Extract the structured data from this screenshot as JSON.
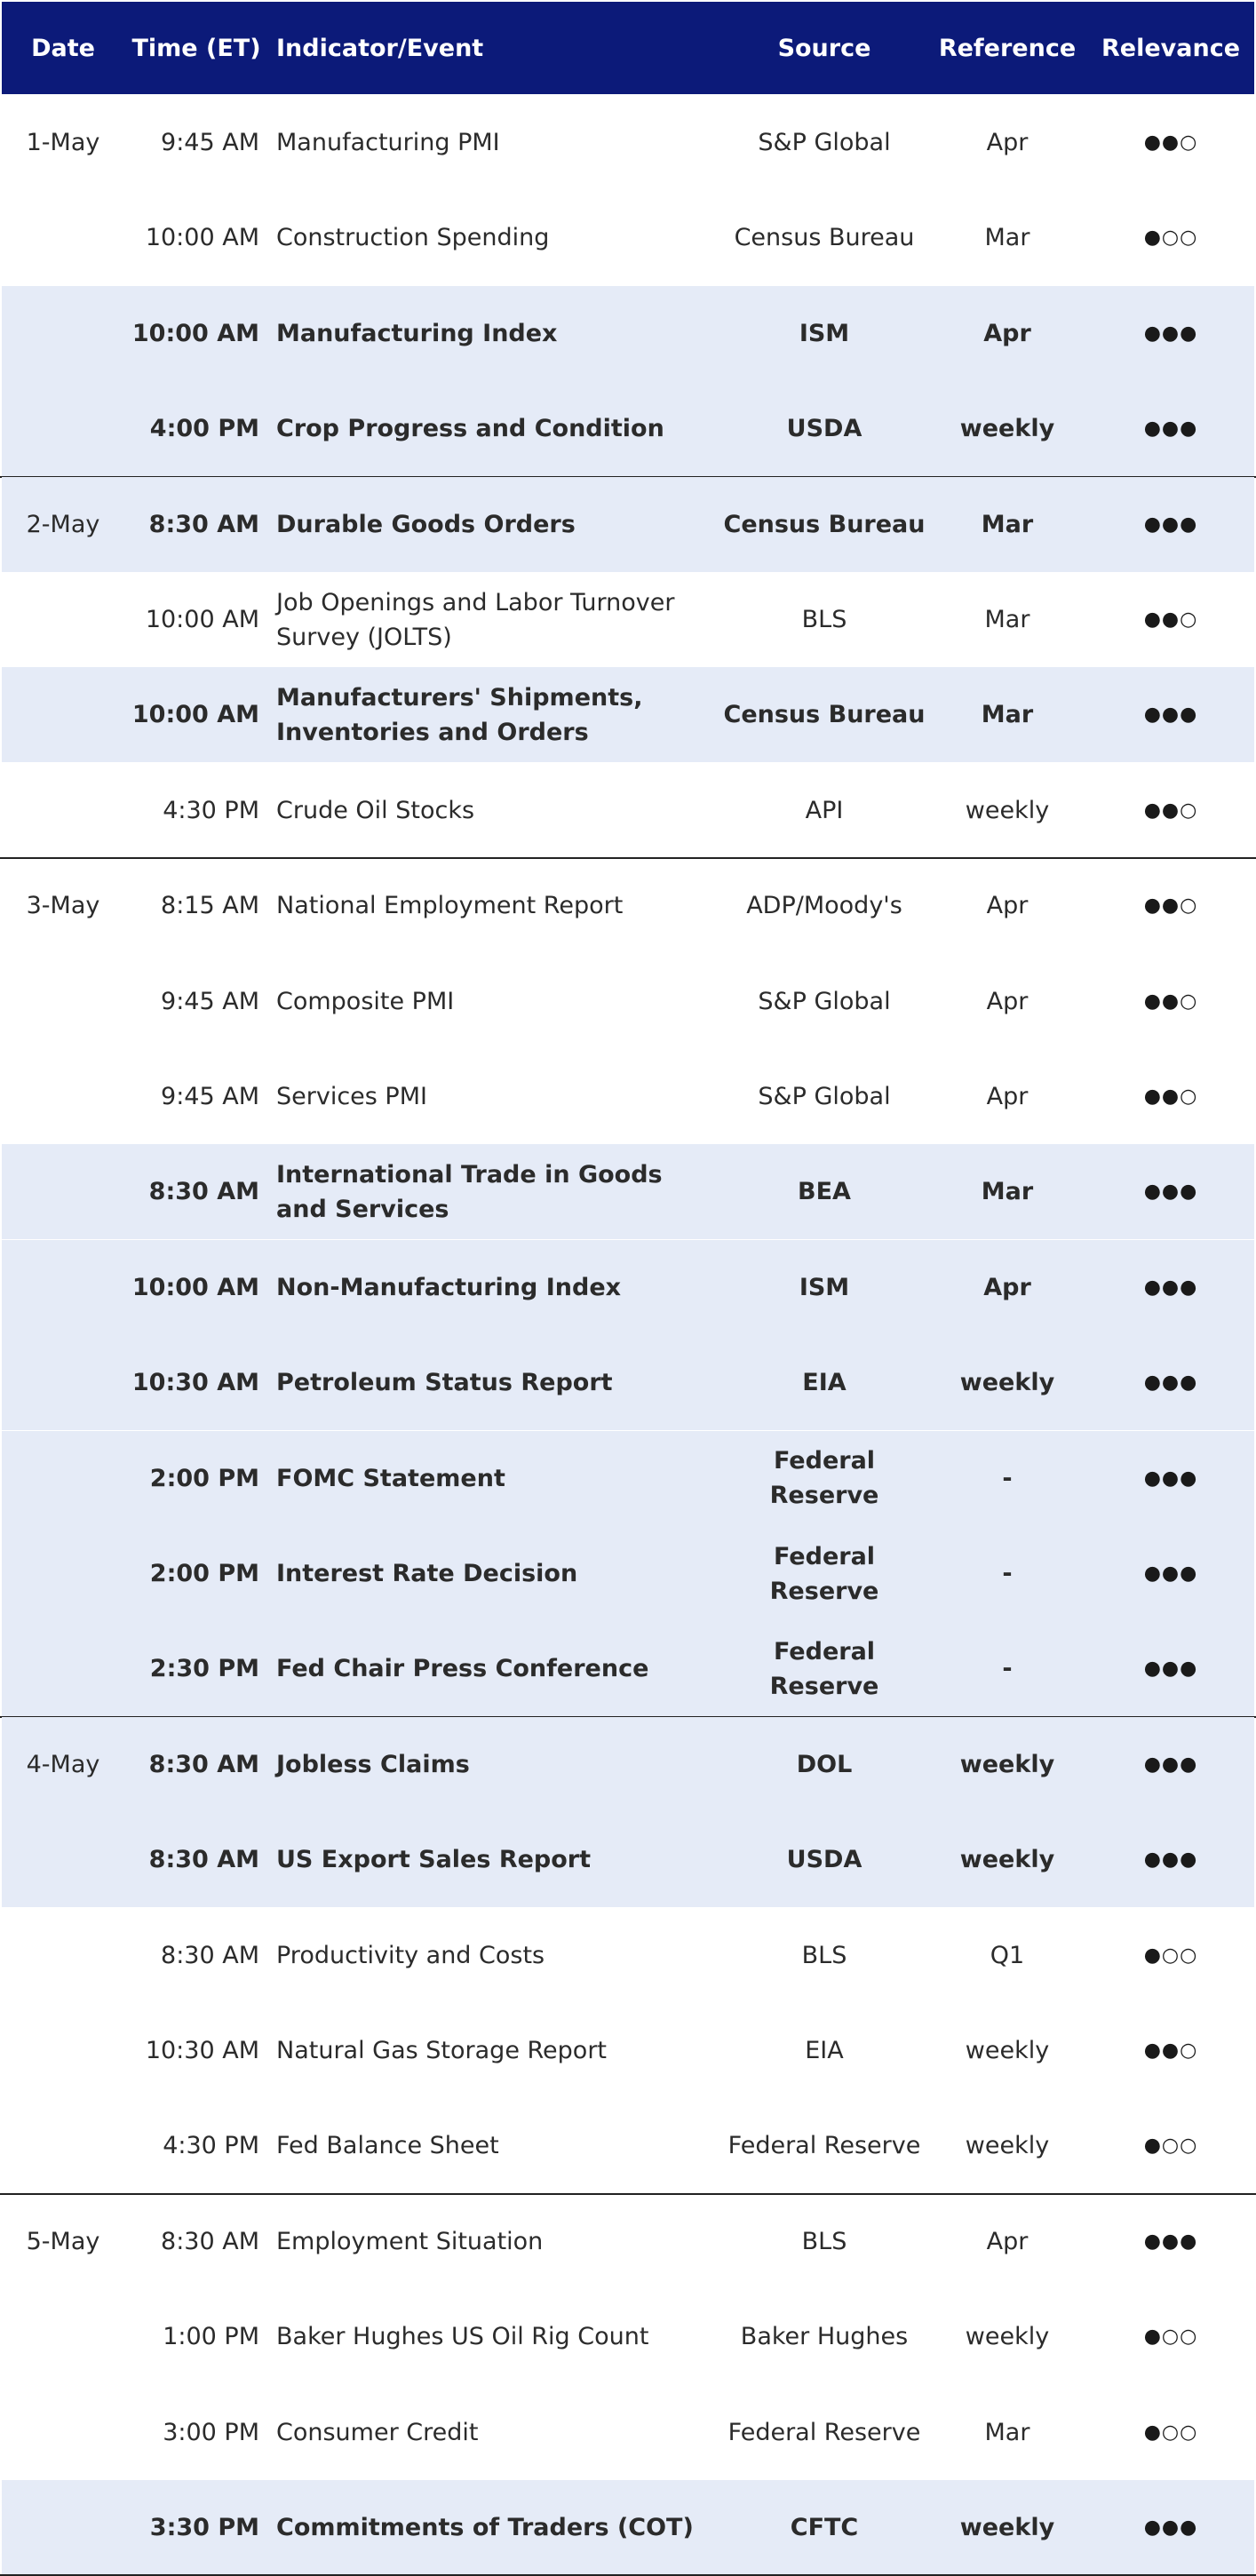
{
  "headers": {
    "date": "Date",
    "time": "Time (ET)",
    "event": "Indicator/Event",
    "source": "Source",
    "reference": "Reference",
    "relevance": "Relevance"
  },
  "rows": [
    {
      "date": "1-May",
      "time": "9:45 AM",
      "event": "Manufacturing PMI",
      "source": "S&P Global",
      "reference": "Apr",
      "relevance": "●●○",
      "highlight": false,
      "bold": false
    },
    {
      "date": "",
      "time": "10:00 AM",
      "event": "Construction Spending",
      "source": "Census Bureau",
      "reference": "Mar",
      "relevance": "●○○",
      "highlight": false,
      "bold": false
    },
    {
      "date": "",
      "time": "10:00 AM",
      "event": "Manufacturing Index",
      "source": "ISM",
      "reference": "Apr",
      "relevance": "●●●",
      "highlight": true,
      "bold": true
    },
    {
      "date": "",
      "time": "4:00 PM",
      "event": "Crop Progress and Condition",
      "source": "USDA",
      "reference": "weekly",
      "relevance": "●●●",
      "highlight": true,
      "bold": true
    },
    {
      "date": "2-May",
      "time": "8:30 AM",
      "event": "Durable Goods Orders",
      "source": "Census Bureau",
      "reference": "Mar",
      "relevance": "●●●",
      "highlight": true,
      "bold": true
    },
    {
      "date": "",
      "time": "10:00 AM",
      "event": "Job Openings and Labor Turnover Survey (JOLTS)",
      "source": "BLS",
      "reference": "Mar",
      "relevance": "●●○",
      "highlight": false,
      "bold": false
    },
    {
      "date": "",
      "time": "10:00 AM",
      "event": "Manufacturers' Shipments, Inventories and Orders",
      "source": "Census Bureau",
      "reference": "Mar",
      "relevance": "●●●",
      "highlight": true,
      "bold": true
    },
    {
      "date": "",
      "time": "4:30 PM",
      "event": "Crude Oil Stocks",
      "source": "API",
      "reference": "weekly",
      "relevance": "●●○",
      "highlight": false,
      "bold": false
    },
    {
      "date": "3-May",
      "time": "8:15 AM",
      "event": "National Employment Report",
      "source": "ADP/Moody's",
      "reference": "Apr",
      "relevance": "●●○",
      "highlight": false,
      "bold": false
    },
    {
      "date": "",
      "time": "9:45 AM",
      "event": "Composite PMI",
      "source": "S&P Global",
      "reference": "Apr",
      "relevance": "●●○",
      "highlight": false,
      "bold": false
    },
    {
      "date": "",
      "time": "9:45 AM",
      "event": "Services PMI",
      "source": "S&P Global",
      "reference": "Apr",
      "relevance": "●●○",
      "highlight": false,
      "bold": false
    },
    {
      "date": "",
      "time": "8:30 AM",
      "event": "International Trade in Goods and Services",
      "source": "BEA",
      "reference": "Mar",
      "relevance": "●●●",
      "highlight": true,
      "bold": true
    },
    {
      "date": "",
      "time": "10:00 AM",
      "event": "Non-Manufacturing Index",
      "source": "ISM",
      "reference": "Apr",
      "relevance": "●●●",
      "highlight": true,
      "bold": true
    },
    {
      "date": "",
      "time": "10:30 AM",
      "event": "Petroleum Status Report",
      "source": "EIA",
      "reference": "weekly",
      "relevance": "●●●",
      "highlight": true,
      "bold": true
    },
    {
      "date": "",
      "time": "2:00 PM",
      "event": "FOMC Statement",
      "source": "Federal Reserve",
      "reference": "-",
      "relevance": "●●●",
      "highlight": true,
      "bold": true
    },
    {
      "date": "",
      "time": "2:00 PM",
      "event": "Interest Rate Decision",
      "source": "Federal Reserve",
      "reference": "-",
      "relevance": "●●●",
      "highlight": true,
      "bold": true
    },
    {
      "date": "",
      "time": "2:30 PM",
      "event": "Fed Chair Press Conference",
      "source": "Federal Reserve",
      "reference": "-",
      "relevance": "●●●",
      "highlight": true,
      "bold": true
    },
    {
      "date": "4-May",
      "time": "8:30 AM",
      "event": "Jobless Claims",
      "source": "DOL",
      "reference": "weekly",
      "relevance": "●●●",
      "highlight": true,
      "bold": true
    },
    {
      "date": "",
      "time": "8:30 AM",
      "event": "US Export Sales Report",
      "source": "USDA",
      "reference": "weekly",
      "relevance": "●●●",
      "highlight": true,
      "bold": true
    },
    {
      "date": "",
      "time": "8:30 AM",
      "event": "Productivity and Costs",
      "source": "BLS",
      "reference": "Q1",
      "relevance": "●○○",
      "highlight": false,
      "bold": false
    },
    {
      "date": "",
      "time": "10:30 AM",
      "event": "Natural Gas Storage Report",
      "source": "EIA",
      "reference": "weekly",
      "relevance": "●●○",
      "highlight": false,
      "bold": false
    },
    {
      "date": "",
      "time": "4:30 PM",
      "event": "Fed Balance Sheet",
      "source": "Federal Reserve",
      "reference": "weekly",
      "relevance": "●○○",
      "highlight": false,
      "bold": false
    },
    {
      "date": "5-May",
      "time": "8:30 AM",
      "event": "Employment Situation",
      "source": "BLS",
      "reference": "Apr",
      "relevance": "●●●",
      "highlight": false,
      "bold": false
    },
    {
      "date": "",
      "time": "1:00 PM",
      "event": "Baker Hughes US Oil Rig Count",
      "source": "Baker Hughes",
      "reference": "weekly",
      "relevance": "●○○",
      "highlight": false,
      "bold": false
    },
    {
      "date": "",
      "time": "3:00 PM",
      "event": "Consumer Credit",
      "source": "Federal Reserve",
      "reference": "Mar",
      "relevance": "●○○",
      "highlight": false,
      "bold": false
    },
    {
      "date": "",
      "time": "3:30 PM",
      "event": "Commitments of Traders (COT)",
      "source": "CFTC",
      "reference": "weekly",
      "relevance": "●●●",
      "highlight": true,
      "bold": true
    }
  ],
  "colors": {
    "header_bg": "#0c1a79",
    "highlight_bg": "#e5ebf7",
    "divider": "#222222"
  }
}
